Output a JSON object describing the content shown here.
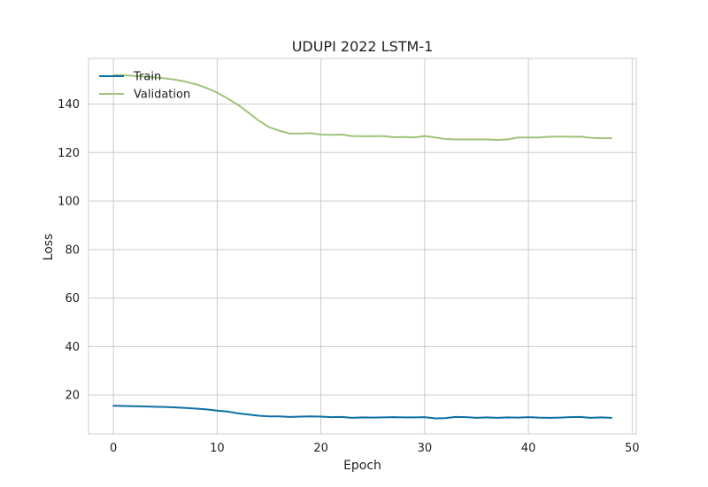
{
  "chart_data": {
    "type": "line",
    "title": "UDUPI 2022 LSTM-1",
    "xlabel": "Epoch",
    "ylabel": "Loss",
    "xlim": [
      -2.4,
      50.4
    ],
    "ylim": [
      4,
      158.8
    ],
    "xticks": [
      0,
      10,
      20,
      30,
      40,
      50
    ],
    "yticks": [
      20,
      40,
      60,
      80,
      100,
      120,
      140
    ],
    "grid": true,
    "legend_position": "top-left",
    "x": [
      0,
      1,
      2,
      3,
      4,
      5,
      6,
      7,
      8,
      9,
      10,
      11,
      12,
      13,
      14,
      15,
      16,
      17,
      18,
      19,
      20,
      21,
      22,
      23,
      24,
      25,
      26,
      27,
      28,
      29,
      30,
      31,
      32,
      33,
      34,
      35,
      36,
      37,
      38,
      39,
      40,
      41,
      42,
      43,
      44,
      45,
      46,
      47,
      48
    ],
    "series": [
      {
        "name": "Train",
        "color": "#0c6fa4",
        "values": [
          15.6,
          15.5,
          15.4,
          15.3,
          15.2,
          15.1,
          14.9,
          14.7,
          14.4,
          14.1,
          13.6,
          13.2,
          12.5,
          12.0,
          11.5,
          11.2,
          11.2,
          11.0,
          11.1,
          11.2,
          11.1,
          10.9,
          11.0,
          10.6,
          10.8,
          10.7,
          10.8,
          10.9,
          10.8,
          10.8,
          10.9,
          10.4,
          10.5,
          11.0,
          10.9,
          10.6,
          10.8,
          10.6,
          10.8,
          10.7,
          10.9,
          10.7,
          10.6,
          10.7,
          10.9,
          11.0,
          10.6,
          10.8,
          10.6
        ]
      },
      {
        "name": "Validation",
        "color": "#9dc47b",
        "values": [
          151.9,
          151.9,
          151.6,
          151.3,
          151.0,
          150.6,
          150.0,
          149.2,
          148.1,
          146.6,
          144.7,
          142.3,
          139.7,
          136.5,
          133.2,
          130.5,
          129.0,
          127.8,
          127.8,
          128.0,
          127.4,
          127.3,
          127.4,
          126.8,
          126.7,
          126.7,
          126.8,
          126.3,
          126.4,
          126.2,
          126.8,
          126.2,
          125.6,
          125.4,
          125.4,
          125.4,
          125.4,
          125.2,
          125.4,
          126.2,
          126.2,
          126.2,
          126.5,
          126.6,
          126.5,
          126.6,
          126.1,
          125.9,
          125.9
        ]
      }
    ]
  }
}
